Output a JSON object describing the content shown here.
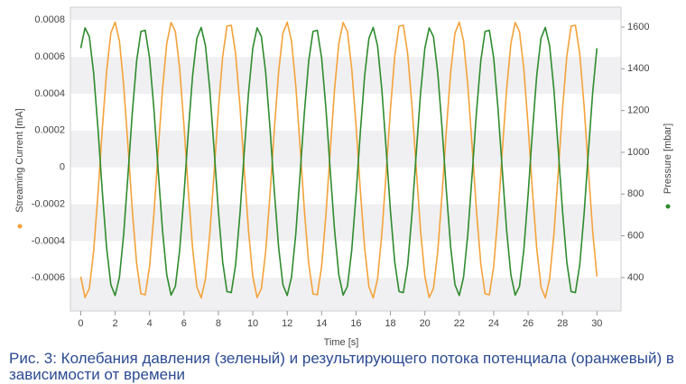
{
  "chart_data": {
    "type": "line",
    "xlabel": "Time [s]",
    "ylabel": "Streaming Current [mA]",
    "y2label": "Pressure [mbar]",
    "caption": "Рис. 3: Колебания давления (зеленый) и результирующего потока потенциала (оранжевый) в зависимости от времени",
    "x": [
      0,
      0.25,
      0.5,
      0.75,
      1,
      1.25,
      1.5,
      1.75,
      2,
      2.25,
      2.5,
      2.75,
      3,
      3.25,
      3.5,
      3.75,
      4,
      4.25,
      4.5,
      4.75,
      5,
      5.25,
      5.5,
      5.75,
      6,
      6.25,
      6.5,
      6.75,
      7,
      7.25,
      7.5,
      7.75,
      8,
      8.25,
      8.5,
      8.75,
      9,
      9.25,
      9.5,
      9.75,
      10,
      10.25,
      10.5,
      10.75,
      11,
      11.25,
      11.5,
      11.75,
      12,
      12.25,
      12.5,
      12.75,
      13,
      13.25,
      13.5,
      13.75,
      14,
      14.25,
      14.5,
      14.75,
      15,
      15.25,
      15.5,
      15.75,
      16,
      16.25,
      16.5,
      16.75,
      17,
      17.25,
      17.5,
      17.75,
      18,
      18.25,
      18.5,
      18.75,
      19,
      19.25,
      19.5,
      19.75,
      20,
      20.25,
      20.5,
      20.75,
      21,
      21.25,
      21.5,
      21.75,
      22,
      22.25,
      22.5,
      22.75,
      23,
      23.25,
      23.5,
      23.75,
      24,
      24.25,
      24.5,
      24.75,
      25,
      25.25,
      25.5,
      25.75,
      26,
      26.25,
      26.5,
      26.75,
      27,
      27.25,
      27.5,
      27.75,
      28,
      28.25,
      28.5,
      28.75,
      29,
      29.25,
      29.5,
      29.75,
      30
    ],
    "series": [
      {
        "color": "#f4a23a",
        "axis": "y",
        "values": [
          -0.000593,
          -0.000707,
          -0.000658,
          -0.000456,
          -0.000147,
          0.000204,
          0.000518,
          0.000729,
          0.000789,
          0.000686,
          0.000442,
          0.000111,
          -0.000236,
          -0.000523,
          -0.000687,
          -0.000692,
          -0.000538,
          -0.000258,
          8.7e-05,
          0.000422,
          0.000673,
          0.000787,
          0.000738,
          0.000536,
          0.000227,
          -0.000124,
          -0.000438,
          -0.000649,
          -0.000709,
          -0.000606,
          -0.000362,
          -3.1e-05,
          0.000316,
          0.000603,
          0.000767,
          0.000772,
          0.000618,
          0.000338,
          -7e-06,
          -0.000342,
          -0.000593,
          -0.000707,
          -0.000658,
          -0.000456,
          -0.000147,
          0.000204,
          0.000518,
          0.000729,
          0.000789,
          0.000686,
          0.000442,
          0.000111,
          -0.000236,
          -0.000523,
          -0.000687,
          -0.000692,
          -0.000538,
          -0.000258,
          8.7e-05,
          0.000422,
          0.000673,
          0.000787,
          0.000738,
          0.000536,
          0.000227,
          -0.000124,
          -0.000438,
          -0.000649,
          -0.000709,
          -0.000606,
          -0.000362,
          -3.1e-05,
          0.000316,
          0.000603,
          0.000767,
          0.000772,
          0.000618,
          0.000338,
          -7e-06,
          -0.000342,
          -0.000593,
          -0.000707,
          -0.000658,
          -0.000456,
          -0.000147,
          0.000204,
          0.000518,
          0.000729,
          0.000789,
          0.000686,
          0.000442,
          0.000111,
          -0.000236,
          -0.000523,
          -0.000687,
          -0.000692,
          -0.000538,
          -0.000258,
          8.7e-05,
          0.000422,
          0.000673,
          0.000787,
          0.000738,
          0.000536,
          0.000227,
          -0.000124,
          -0.000438,
          -0.000649,
          -0.000709,
          -0.000606,
          -0.000362,
          -3.1e-05,
          0.000316,
          0.000603,
          0.000767,
          0.000772,
          0.000618,
          0.000338,
          -7e-06,
          -0.000342,
          -0.000593
        ]
      },
      {
        "color": "#2e8b2e",
        "axis": "y2",
        "values": [
          1499,
          1596,
          1554,
          1381,
          1116,
          816,
          546,
          366,
          314,
          402,
          611,
          896,
          1193,
          1438,
          1579,
          1584,
          1452,
          1211,
          915,
          629,
          413,
          316,
          358,
          531,
          796,
          1096,
          1366,
          1546,
          1598,
          1510,
          1301,
          1016,
          719,
          474,
          333,
          328,
          460,
          701,
          997,
          1283,
          1499,
          1596,
          1554,
          1381,
          1116,
          816,
          546,
          366,
          314,
          402,
          611,
          896,
          1193,
          1438,
          1579,
          1584,
          1452,
          1211,
          915,
          629,
          413,
          316,
          358,
          531,
          796,
          1096,
          1366,
          1546,
          1598,
          1510,
          1301,
          1016,
          719,
          474,
          333,
          328,
          460,
          701,
          997,
          1283,
          1499,
          1596,
          1554,
          1381,
          1116,
          816,
          546,
          366,
          314,
          402,
          611,
          896,
          1193,
          1438,
          1579,
          1584,
          1452,
          1211,
          915,
          629,
          413,
          316,
          358,
          531,
          796,
          1096,
          1366,
          1546,
          1598,
          1510,
          1301,
          1016,
          719,
          474,
          333,
          328,
          460,
          701,
          997,
          1283,
          1499
        ]
      }
    ],
    "xlim": [
      -0.6,
      31.4
    ],
    "xticks": [
      0,
      2,
      4,
      6,
      8,
      10,
      12,
      14,
      16,
      18,
      20,
      22,
      24,
      26,
      28,
      30
    ],
    "ylim": [
      -0.00078,
      0.00087
    ],
    "yticks": [
      -0.0006,
      -0.0004,
      -0.0002,
      0,
      0.0002,
      0.0004,
      0.0006,
      0.0008
    ],
    "y2lim": [
      240,
      1695
    ],
    "y2ticks": [
      400,
      600,
      800,
      1000,
      1200,
      1400,
      1600
    ],
    "bands": true
  }
}
